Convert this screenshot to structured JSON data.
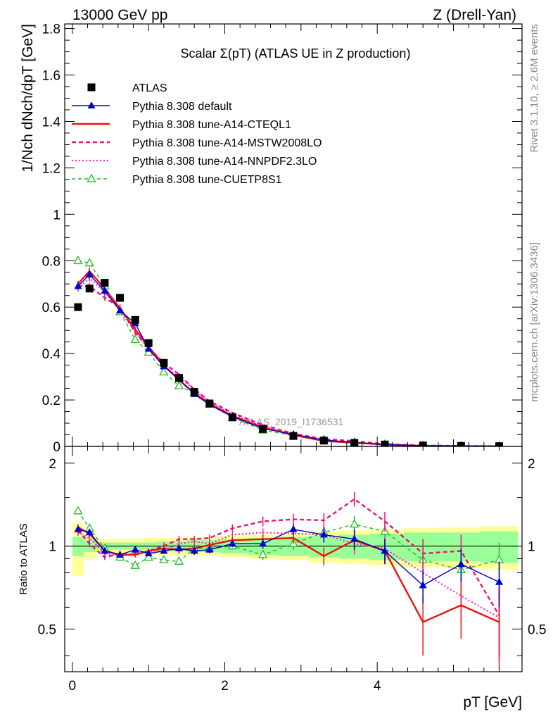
{
  "header": {
    "left": "13000 GeV pp",
    "right": "Z (Drell-Yan)"
  },
  "side_labels": {
    "rivet": "Rivet 3.1.10, ≥ 2.6M events",
    "mcplots": "mcplots.cern.ch [arXiv:1306.3436]"
  },
  "watermark": "ATLAS_2019_I1736531",
  "colors": {
    "atlas": "#000000",
    "default": "#0000cc",
    "cteql1": "#ee1111",
    "mstw": "#ee1177",
    "nnpdf": "#ff22cc",
    "cuetp8s1": "#22bb22",
    "band_inner": "#99ff99",
    "band_outer": "#ffff99"
  },
  "chart_data": [
    {
      "type": "line",
      "title": "Scalar Σ(pT) (ATLAS UE in Z production)",
      "ylabel": "1/Nch dNch/dpT [GeV]",
      "xlim": [
        -0.1,
        5.9
      ],
      "ylim": [
        0,
        1.82
      ],
      "y_ticks": [
        0,
        0.2,
        0.4,
        0.6,
        0.8,
        1,
        1.2,
        1.4,
        1.6,
        1.8
      ],
      "legend_position": "top-left",
      "x": [
        0.075,
        0.225,
        0.425,
        0.625,
        0.825,
        1.0,
        1.2,
        1.4,
        1.6,
        1.8,
        2.1,
        2.5,
        2.9,
        3.3,
        3.7,
        4.1,
        4.6,
        5.1,
        5.6
      ],
      "series": [
        {
          "name": "ATLAS",
          "key": "atlas",
          "style": "marker",
          "values": [
            0.6,
            0.68,
            0.705,
            0.64,
            0.545,
            0.445,
            0.36,
            0.295,
            0.235,
            0.185,
            0.125,
            0.075,
            0.045,
            0.025,
            0.015,
            0.008,
            0.004,
            0.002,
            0.001
          ]
        },
        {
          "name": "Pythia 8.308 default",
          "key": "default",
          "style": "solid-triangle",
          "values": [
            0.69,
            0.74,
            0.67,
            0.585,
            0.53,
            0.42,
            0.345,
            0.29,
            0.225,
            0.18,
            0.128,
            0.077,
            0.052,
            0.028,
            0.016,
            0.008,
            0.003,
            0.002,
            0.001
          ]
        },
        {
          "name": "Pythia 8.308 tune-A14-CTEQL1",
          "key": "cteql1",
          "style": "solid",
          "values": [
            0.7,
            0.755,
            0.68,
            0.595,
            0.505,
            0.43,
            0.35,
            0.285,
            0.23,
            0.185,
            0.132,
            0.082,
            0.049,
            0.023,
            0.016,
            0.008,
            0.002,
            0.001,
            0.001
          ]
        },
        {
          "name": "Pythia 8.308 tune-A14-MSTW2008LO",
          "key": "mstw",
          "style": "dashed",
          "values": [
            0.69,
            0.69,
            0.64,
            0.6,
            0.49,
            0.425,
            0.36,
            0.31,
            0.245,
            0.195,
            0.145,
            0.092,
            0.055,
            0.032,
            0.023,
            0.01,
            0.004,
            0.002,
            0.001
          ]
        },
        {
          "name": "Pythia 8.308 tune-A14-NNPDF2.3LO",
          "key": "nnpdf",
          "style": "dotted",
          "values": [
            0.68,
            0.725,
            0.665,
            0.585,
            0.495,
            0.42,
            0.345,
            0.3,
            0.245,
            0.19,
            0.138,
            0.085,
            0.05,
            0.028,
            0.016,
            0.008,
            0.003,
            0.001,
            0.001
          ]
        },
        {
          "name": "Pythia 8.308 tune-CUETP8S1",
          "key": "cuetp8s1",
          "style": "dashed-open-triangle",
          "values": [
            0.8,
            0.79,
            0.69,
            0.58,
            0.46,
            0.405,
            0.32,
            0.26,
            0.23,
            0.18,
            0.125,
            0.07,
            0.046,
            0.028,
            0.018,
            0.009,
            0.003,
            0.002,
            0.001
          ]
        }
      ]
    },
    {
      "type": "line",
      "ylabel": "Ratio to ATLAS",
      "xlabel": "pT [GeV]",
      "xlim": [
        -0.1,
        5.9
      ],
      "ylim": [
        0.35,
        2.3
      ],
      "y_ticks": [
        0.5,
        1,
        2
      ],
      "x_ticks": [
        0,
        2,
        4
      ],
      "band_inner": [
        0.92,
        0.95,
        0.97,
        0.97,
        0.97,
        0.97,
        0.96,
        0.96,
        0.95,
        0.95,
        0.94,
        0.93,
        0.92,
        0.91,
        0.9,
        0.89,
        0.88,
        0.88,
        0.87
      ],
      "band_inner_hi": [
        1.08,
        1.05,
        1.03,
        1.03,
        1.03,
        1.03,
        1.04,
        1.04,
        1.05,
        1.05,
        1.06,
        1.07,
        1.08,
        1.09,
        1.1,
        1.11,
        1.12,
        1.12,
        1.13
      ],
      "band_outer": [
        0.78,
        0.9,
        0.94,
        0.94,
        0.94,
        0.93,
        0.93,
        0.93,
        0.92,
        0.92,
        0.91,
        0.9,
        0.89,
        0.87,
        0.86,
        0.85,
        0.84,
        0.83,
        0.82
      ],
      "band_outer_hi": [
        1.22,
        1.1,
        1.06,
        1.06,
        1.06,
        1.07,
        1.07,
        1.07,
        1.08,
        1.08,
        1.09,
        1.1,
        1.11,
        1.13,
        1.14,
        1.15,
        1.16,
        1.17,
        1.18
      ],
      "series": [
        {
          "name": "Pythia 8.308 default",
          "key": "default",
          "values": [
            1.15,
            1.12,
            0.96,
            0.93,
            0.97,
            0.94,
            0.96,
            0.98,
            0.96,
            0.97,
            1.02,
            1.02,
            1.15,
            1.1,
            1.06,
            0.96,
            0.72,
            0.86,
            0.74
          ],
          "err": [
            0.03,
            0.03,
            0.02,
            0.02,
            0.02,
            0.02,
            0.02,
            0.03,
            0.03,
            0.03,
            0.03,
            0.04,
            0.05,
            0.07,
            0.09,
            0.1,
            0.1,
            0.12,
            0.14
          ]
        },
        {
          "name": "Pythia 8.308 tune-A14-CTEQL1",
          "key": "cteql1",
          "values": [
            1.17,
            1.11,
            0.96,
            0.93,
            0.93,
            0.96,
            0.98,
            0.97,
            0.98,
            1.01,
            1.05,
            1.06,
            1.07,
            0.92,
            1.05,
            0.96,
            0.53,
            0.61,
            0.53
          ],
          "err": [
            0.03,
            0.03,
            0.02,
            0.02,
            0.02,
            0.02,
            0.02,
            0.03,
            0.03,
            0.03,
            0.03,
            0.04,
            0.05,
            0.07,
            0.09,
            0.1,
            0.13,
            0.15,
            0.18
          ]
        },
        {
          "name": "Pythia 8.308 tune-A14-MSTW2008LO",
          "key": "mstw",
          "values": [
            1.14,
            1.02,
            0.91,
            0.94,
            0.93,
            0.96,
            1.0,
            1.06,
            1.06,
            1.07,
            1.16,
            1.23,
            1.25,
            1.24,
            1.48,
            1.23,
            0.94,
            0.96,
            0.56
          ],
          "err": [
            0.03,
            0.03,
            0.02,
            0.02,
            0.02,
            0.02,
            0.03,
            0.03,
            0.03,
            0.03,
            0.04,
            0.05,
            0.06,
            0.08,
            0.09,
            0.1,
            0.12,
            0.14,
            0.16
          ]
        },
        {
          "name": "Pythia 8.308 tune-A14-NNPDF2.3LO",
          "key": "nnpdf",
          "values": [
            1.12,
            1.07,
            0.94,
            0.92,
            0.94,
            0.95,
            0.96,
            1.02,
            1.04,
            1.02,
            1.1,
            1.12,
            1.11,
            1.1,
            1.02,
            0.98,
            0.8,
            0.66,
            0.55
          ],
          "err": [
            0.03,
            0.03,
            0.02,
            0.02,
            0.02,
            0.02,
            0.02,
            0.03,
            0.03,
            0.03,
            0.03,
            0.04,
            0.05,
            0.07,
            0.09,
            0.1,
            0.12,
            0.14,
            0.16
          ]
        },
        {
          "name": "Pythia 8.308 tune-CUETP8S1",
          "key": "cuetp8s1",
          "values": [
            1.34,
            1.16,
            0.98,
            0.91,
            0.85,
            0.91,
            0.89,
            0.88,
            0.98,
            0.98,
            1.0,
            0.93,
            1.02,
            1.12,
            1.2,
            1.13,
            0.89,
            0.82,
            0.89
          ],
          "err": [
            0.03,
            0.03,
            0.02,
            0.02,
            0.02,
            0.02,
            0.02,
            0.03,
            0.03,
            0.03,
            0.03,
            0.04,
            0.05,
            0.07,
            0.09,
            0.1,
            0.11,
            0.12,
            0.14
          ]
        }
      ]
    }
  ]
}
